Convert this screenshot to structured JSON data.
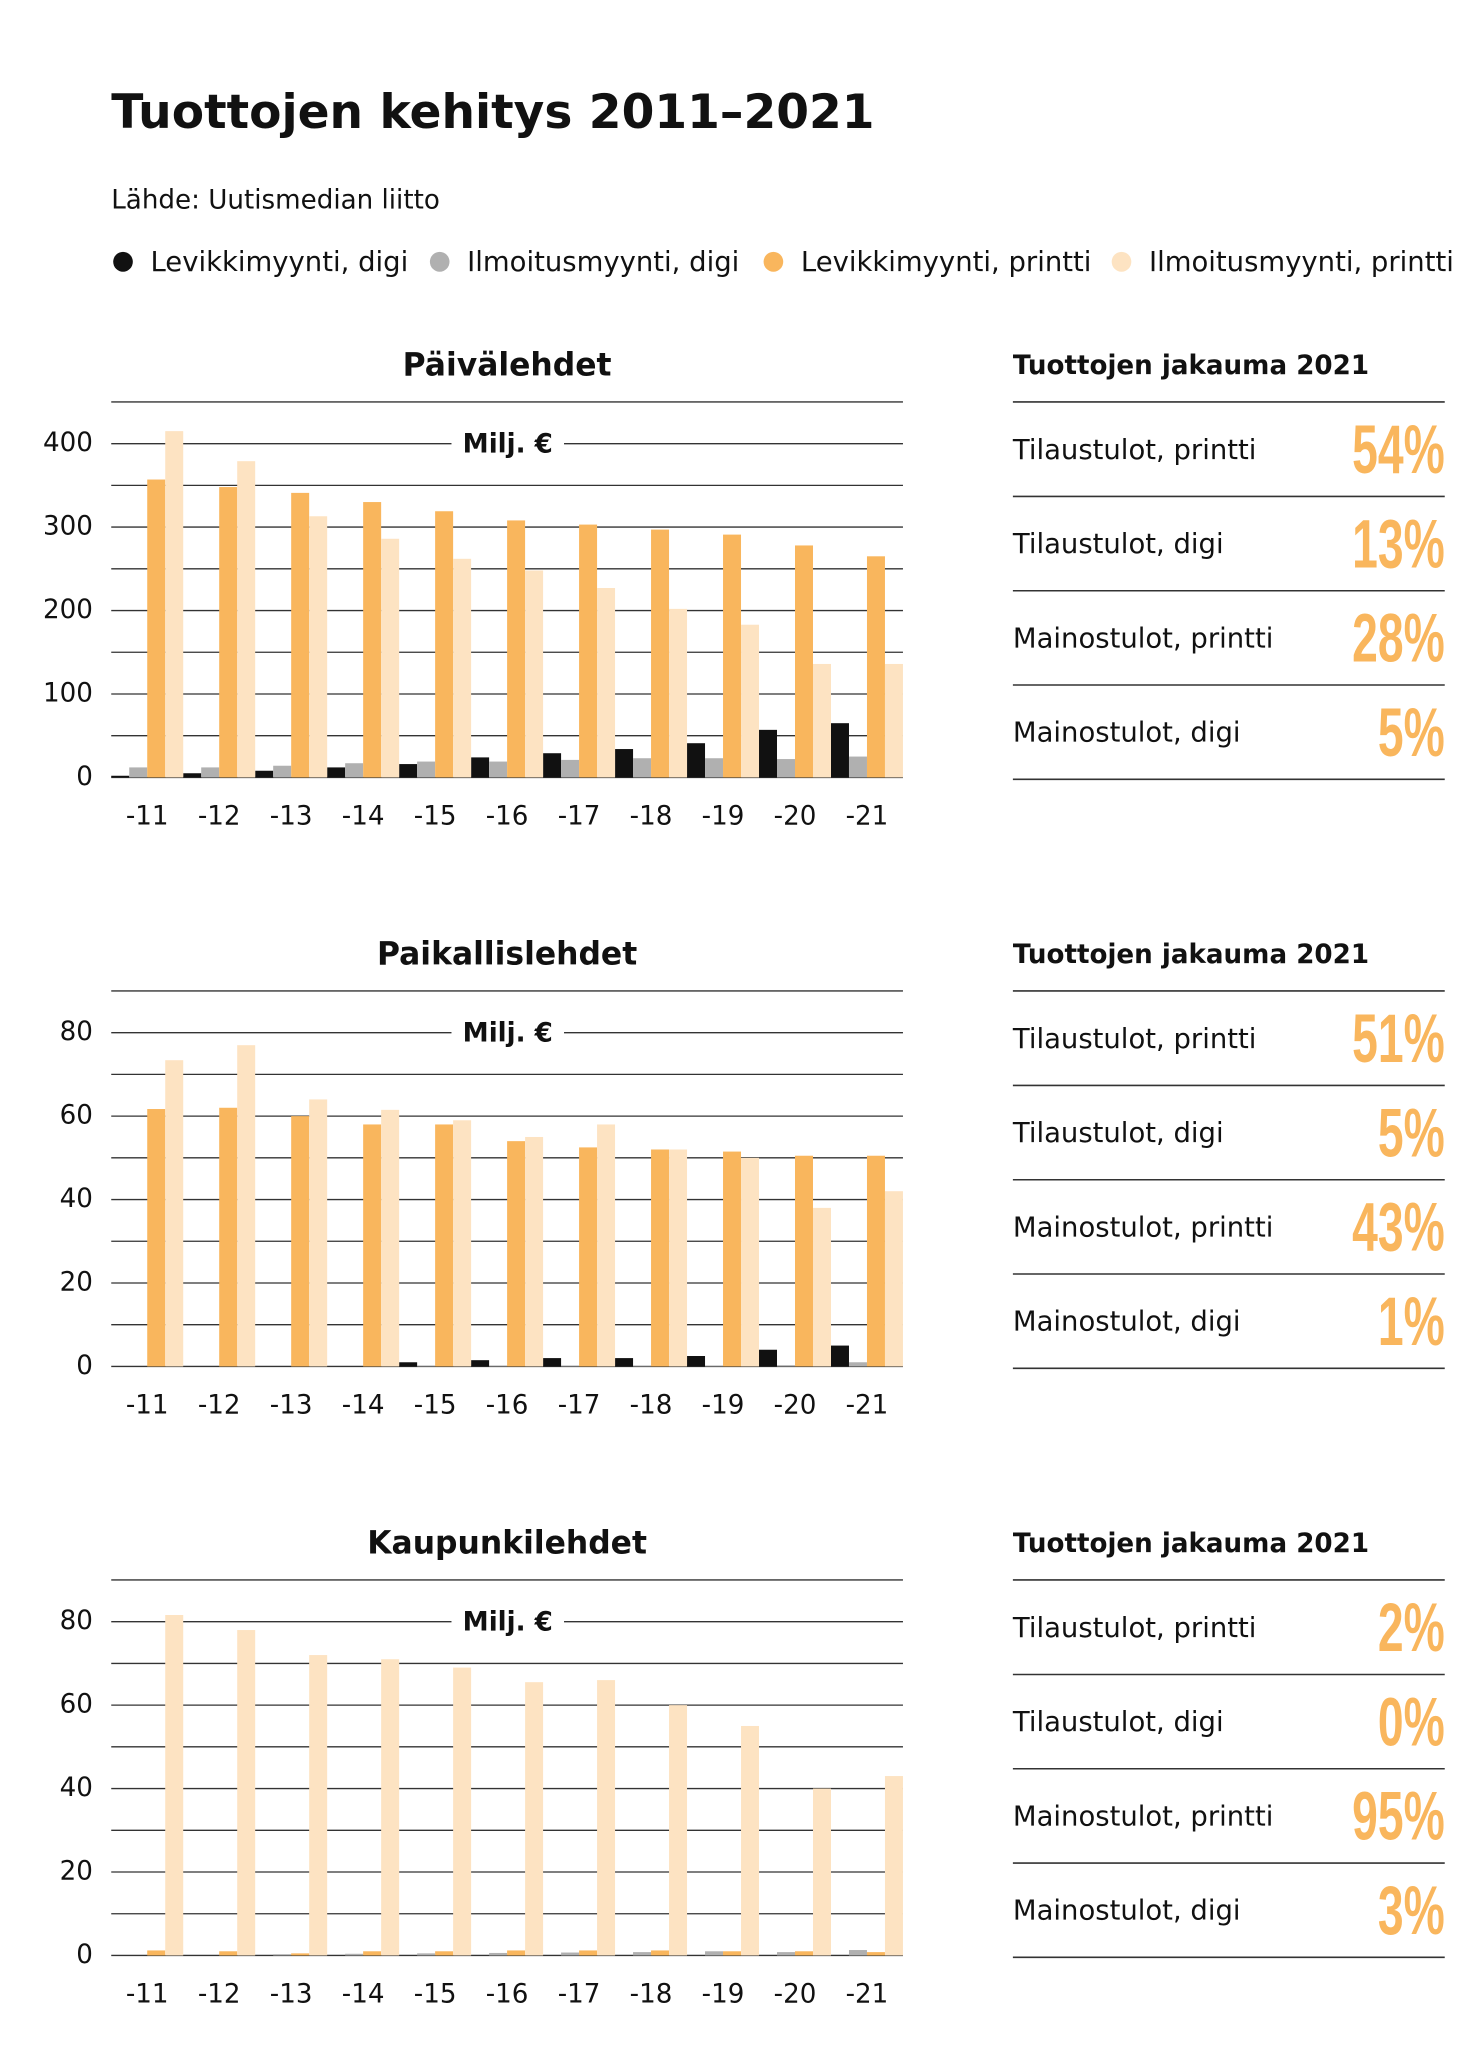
{
  "title": "Tuottojen kehitys 2011–2021",
  "source": "Lähde: Uutismedian liitto",
  "chart_data": [
    {
      "type": "bar",
      "title": "Päivälehdet",
      "y_label": "Milj. €",
      "categories": [
        "-11",
        "-12",
        "-13",
        "-14",
        "-15",
        "-16",
        "-17",
        "-18",
        "-19",
        "-20",
        "-21"
      ],
      "ylim": [
        0,
        450
      ],
      "yticks": [
        0,
        100,
        200,
        300,
        400
      ],
      "minor_yticks": [
        50,
        150,
        250,
        350,
        450
      ],
      "grid": true,
      "series": [
        {
          "name": "Levikkimyynti, digi",
          "color": "#111111",
          "values": [
            2,
            5,
            8,
            12,
            16,
            24,
            29,
            34,
            41,
            57,
            65
          ]
        },
        {
          "name": "Ilmoitusmyynti, digi",
          "color": "#b0b0b0",
          "values": [
            12,
            12,
            14,
            17,
            19,
            19,
            21,
            23,
            23,
            22,
            25
          ]
        },
        {
          "name": "Levikkimyynti, printti",
          "color": "#f9b65d",
          "values": [
            357,
            348,
            341,
            330,
            319,
            308,
            303,
            297,
            291,
            278,
            265
          ]
        },
        {
          "name": "Ilmoitusmyynti, printti",
          "color": "#fde3c2",
          "values": [
            415,
            379,
            313,
            286,
            262,
            248,
            227,
            202,
            183,
            136,
            136
          ]
        }
      ],
      "share": {
        "title": "Tuottojen jakauma 2021",
        "labels": [
          "Tilaustulot, printti",
          "Tilaustulot, digi",
          "Mainostulot, printti",
          "Mainostulot, digi"
        ],
        "values": [
          54,
          13,
          28,
          5
        ],
        "value_labels": [
          "54%",
          "13%",
          "28%",
          "5%"
        ]
      }
    },
    {
      "type": "bar",
      "title": "Paikallislehdet",
      "y_label": "Milj. €",
      "categories": [
        "-11",
        "-12",
        "-13",
        "-14",
        "-15",
        "-16",
        "-17",
        "-18",
        "-19",
        "-20",
        "-21"
      ],
      "ylim": [
        0,
        90
      ],
      "yticks": [
        0,
        20,
        40,
        60,
        80
      ],
      "minor_yticks": [
        10,
        30,
        50,
        70,
        90
      ],
      "grid": true,
      "series": [
        {
          "name": "Levikkimyynti, digi",
          "color": "#111111",
          "values": [
            0,
            0,
            0,
            0,
            1,
            1.5,
            2,
            2,
            2.5,
            4,
            5
          ]
        },
        {
          "name": "Ilmoitusmyynti, digi",
          "color": "#b0b0b0",
          "values": [
            0,
            0,
            0,
            0,
            0.2,
            0.2,
            0.2,
            0.2,
            0.2,
            0.3,
            1
          ]
        },
        {
          "name": "Levikkimyynti, printti",
          "color": "#f9b65d",
          "values": [
            61.7,
            62,
            60,
            58,
            58,
            54,
            52.5,
            52,
            51.5,
            50.5,
            50.5
          ]
        },
        {
          "name": "Ilmoitusmyynti, printti",
          "color": "#fde3c2",
          "values": [
            73.4,
            77,
            64,
            61.5,
            59,
            55,
            58,
            52,
            50,
            38,
            42
          ]
        }
      ],
      "share": {
        "title": "Tuottojen jakauma 2021",
        "labels": [
          "Tilaustulot, printti",
          "Tilaustulot, digi",
          "Mainostulot, printti",
          "Mainostulot, digi"
        ],
        "values": [
          51,
          5,
          43,
          1
        ],
        "value_labels": [
          "51%",
          "5%",
          "43%",
          "1%"
        ]
      }
    },
    {
      "type": "bar",
      "title": "Kaupunkilehdet",
      "y_label": "Milj. €",
      "categories": [
        "-11",
        "-12",
        "-13",
        "-14",
        "-15",
        "-16",
        "-17",
        "-18",
        "-19",
        "-20",
        "-21"
      ],
      "ylim": [
        0,
        90
      ],
      "yticks": [
        0,
        20,
        40,
        60,
        80
      ],
      "minor_yticks": [
        10,
        30,
        50,
        70,
        90
      ],
      "grid": true,
      "series": [
        {
          "name": "Levikkimyynti, digi",
          "color": "#111111",
          "values": [
            0,
            0,
            0,
            0,
            0,
            0,
            0,
            0,
            0,
            0,
            0
          ]
        },
        {
          "name": "Ilmoitusmyynti, digi",
          "color": "#b0b0b0",
          "values": [
            0,
            0,
            0.3,
            0.4,
            0.5,
            0.6,
            0.7,
            0.8,
            1,
            0.8,
            1.3
          ]
        },
        {
          "name": "Levikkimyynti, printti",
          "color": "#f9b65d",
          "values": [
            1.2,
            1,
            0.5,
            1,
            1,
            1.2,
            1.2,
            1.2,
            1,
            1,
            0.8
          ]
        },
        {
          "name": "Ilmoitusmyynti, printti",
          "color": "#fde3c2",
          "values": [
            81.6,
            78,
            72,
            71,
            69,
            65.5,
            66,
            60,
            55,
            40,
            43
          ]
        }
      ],
      "share": {
        "title": "Tuottojen jakauma 2021",
        "labels": [
          "Tilaustulot, printti",
          "Tilaustulot, digi",
          "Mainostulot, printti",
          "Mainostulot, digi"
        ],
        "values": [
          2,
          0,
          95,
          3
        ],
        "value_labels": [
          "2%",
          "0%",
          "95%",
          "3%"
        ]
      }
    }
  ]
}
